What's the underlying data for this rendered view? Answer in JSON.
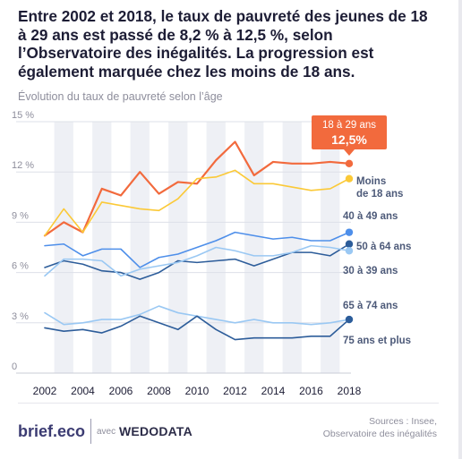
{
  "headline": "Entre 2002 et 2018, le taux de pauvreté des jeunes de 18 à 29 ans est passé de 8,2 % à 12,5 %, selon l’Observatoire des inégalités. La progression est également marquée chez les moins de 18 ans.",
  "subtitle": "Évolution du taux de pauvreté selon l’âge",
  "footer": {
    "brand": "brief.eco",
    "with_label": "avec",
    "partner": "WEDODATA",
    "sources_line1": "Sources : Insee,",
    "sources_line2": "Observatoire des inégalités"
  },
  "chart_data": {
    "type": "line",
    "x": [
      2002,
      2003,
      2004,
      2005,
      2006,
      2007,
      2008,
      2009,
      2010,
      2011,
      2012,
      2013,
      2014,
      2015,
      2016,
      2017,
      2018
    ],
    "x_tick_labels": [
      "2002",
      "2004",
      "2006",
      "2008",
      "2010",
      "2012",
      "2014",
      "2016",
      "2018"
    ],
    "y_tick_labels": [
      "0",
      "3 %",
      "6 %",
      "9 %",
      "12 %",
      "15 %"
    ],
    "ylim": [
      0,
      15
    ],
    "grid": "alternating vertical bands, horizontal gridlines",
    "series": [
      {
        "name": "18 à 29 ans",
        "color": "#f26a3d",
        "line_width": 2.2,
        "values": [
          8.2,
          9.0,
          8.4,
          11.0,
          10.6,
          12.0,
          10.7,
          11.4,
          11.3,
          12.7,
          13.8,
          11.8,
          12.6,
          12.5,
          12.5,
          12.6,
          12.5
        ]
      },
      {
        "name": "Moins de 18 ans",
        "color": "#fbc937",
        "line_width": 1.6,
        "values": [
          8.2,
          9.8,
          8.4,
          10.2,
          10.0,
          9.8,
          9.7,
          10.4,
          11.6,
          11.7,
          12.1,
          11.3,
          11.3,
          11.1,
          10.9,
          11.0,
          11.6
        ]
      },
      {
        "name": "40 à 49 ans",
        "color": "#4e8fea",
        "line_width": 1.6,
        "values": [
          7.6,
          7.7,
          7.0,
          7.4,
          7.4,
          6.3,
          6.9,
          7.1,
          7.5,
          7.9,
          8.4,
          8.2,
          8.0,
          8.1,
          7.9,
          7.9,
          8.4
        ]
      },
      {
        "name": "50 à 64 ans",
        "color": "#2d5d9a",
        "line_width": 1.6,
        "values": [
          6.3,
          6.7,
          6.5,
          6.1,
          6.0,
          5.6,
          6.0,
          6.7,
          6.6,
          6.7,
          6.8,
          6.4,
          6.8,
          7.2,
          7.2,
          7.0,
          7.7
        ]
      },
      {
        "name": "30 à 39 ans",
        "color": "#9ac8f3",
        "line_width": 1.6,
        "values": [
          5.8,
          6.8,
          6.8,
          6.7,
          5.8,
          6.2,
          6.4,
          6.6,
          7.0,
          7.5,
          7.3,
          7.0,
          7.0,
          7.2,
          7.6,
          7.5,
          7.3
        ]
      },
      {
        "name": "65 à 74 ans",
        "color": "#9ac8f3",
        "line_width": 1.6,
        "values": [
          3.6,
          2.9,
          3.0,
          3.2,
          3.2,
          3.5,
          4.0,
          3.6,
          3.4,
          3.2,
          3.0,
          3.2,
          3.0,
          3.0,
          2.9,
          3.0,
          3.2
        ]
      },
      {
        "name": "75 ans et plus",
        "color": "#2d5d9a",
        "line_width": 1.6,
        "values": [
          2.7,
          2.5,
          2.6,
          2.4,
          2.8,
          3.4,
          3.0,
          2.6,
          3.4,
          2.6,
          2.0,
          2.1,
          2.1,
          2.1,
          2.2,
          2.2,
          3.2
        ]
      }
    ],
    "callout": {
      "series": "18 à 29 ans",
      "label": "18 à 29 ans",
      "value_text": "12,5%",
      "color": "#f26a3d"
    },
    "end_labels": [
      "Moins",
      "de 18 ans",
      "40 à 49 ans",
      "50 à 64 ans",
      "30 à 39 ans",
      "65 à 74 ans",
      "75 ans et plus"
    ]
  }
}
